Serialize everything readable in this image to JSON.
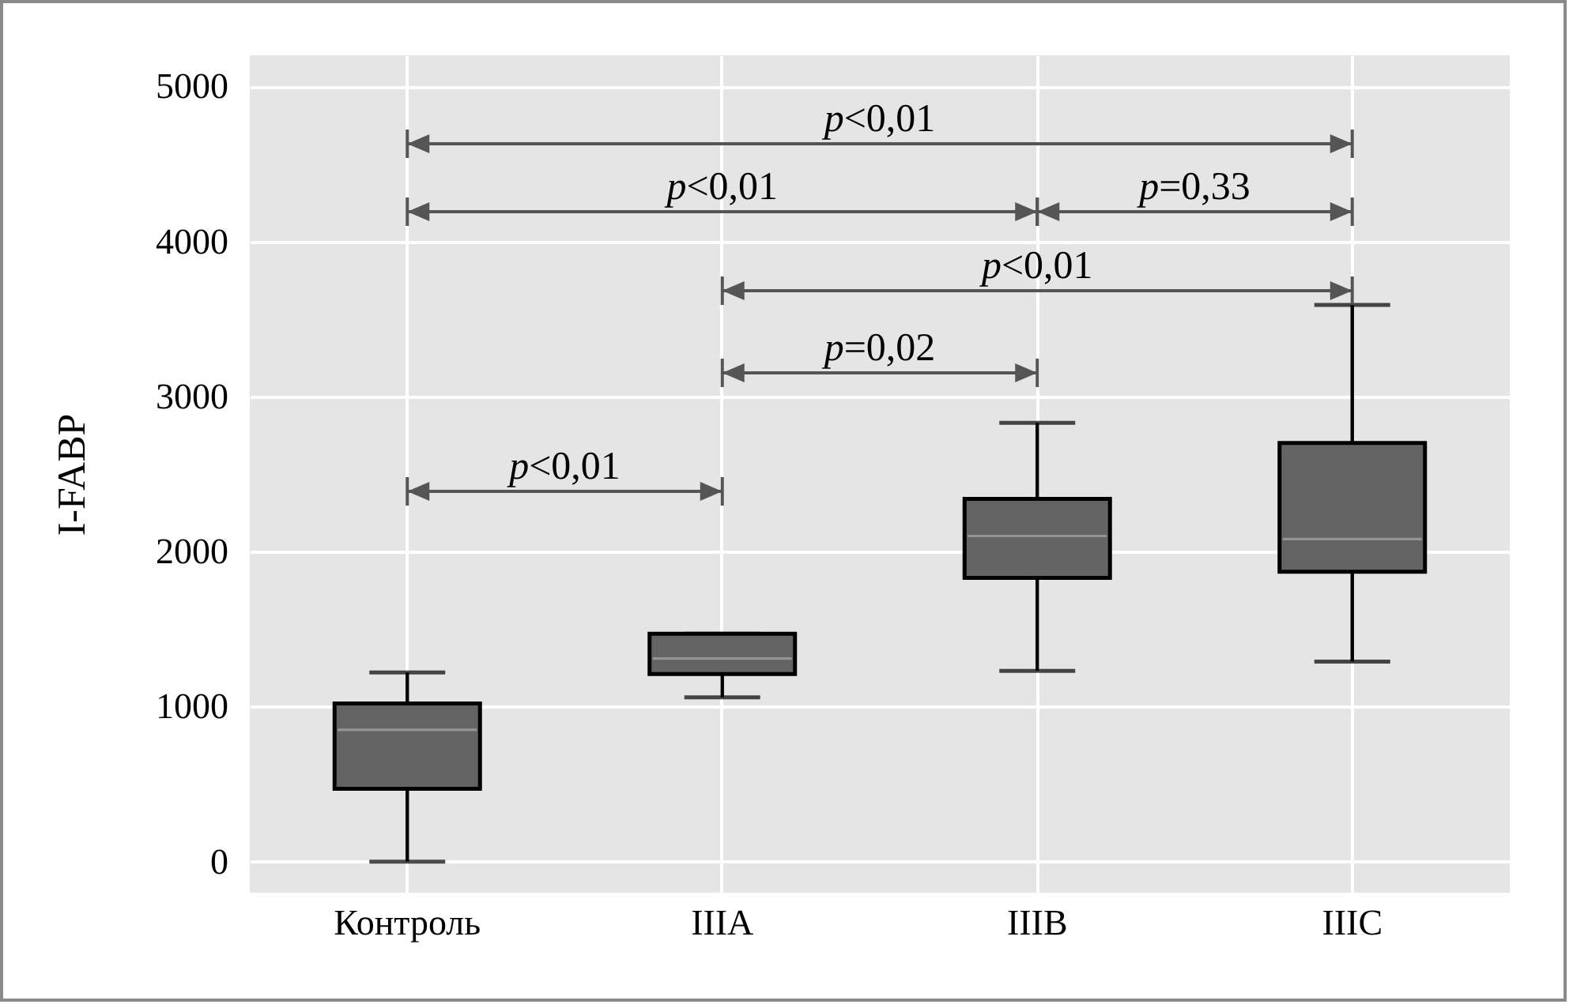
{
  "chart_data": {
    "type": "box",
    "ylabel": "I-FABP",
    "categories": [
      "Контроль",
      "IIIA",
      "IIIB",
      "IIIC"
    ],
    "series": [
      {
        "color": "#636363",
        "boxes": [
          {
            "low": 0,
            "q1": 470,
            "median": 850,
            "q3": 1020,
            "high": 1220
          },
          {
            "low": 1060,
            "q1": 1210,
            "median": 1310,
            "q3": 1470,
            "high": 1470
          },
          {
            "low": 1230,
            "q1": 1830,
            "median": 2100,
            "q3": 2340,
            "high": 2830
          },
          {
            "low": 1290,
            "q1": 1870,
            "median": 2080,
            "q3": 2700,
            "high": 3590
          }
        ]
      }
    ],
    "ylim": [
      -200,
      5200
    ],
    "yticks": [
      0,
      1000,
      2000,
      3000,
      4000,
      5000
    ],
    "grid": true,
    "annotations": [
      "p<0,01",
      "p<0,01",
      "p=0,33",
      "p<0,01",
      "p=0,02",
      "p<0,01"
    ]
  }
}
